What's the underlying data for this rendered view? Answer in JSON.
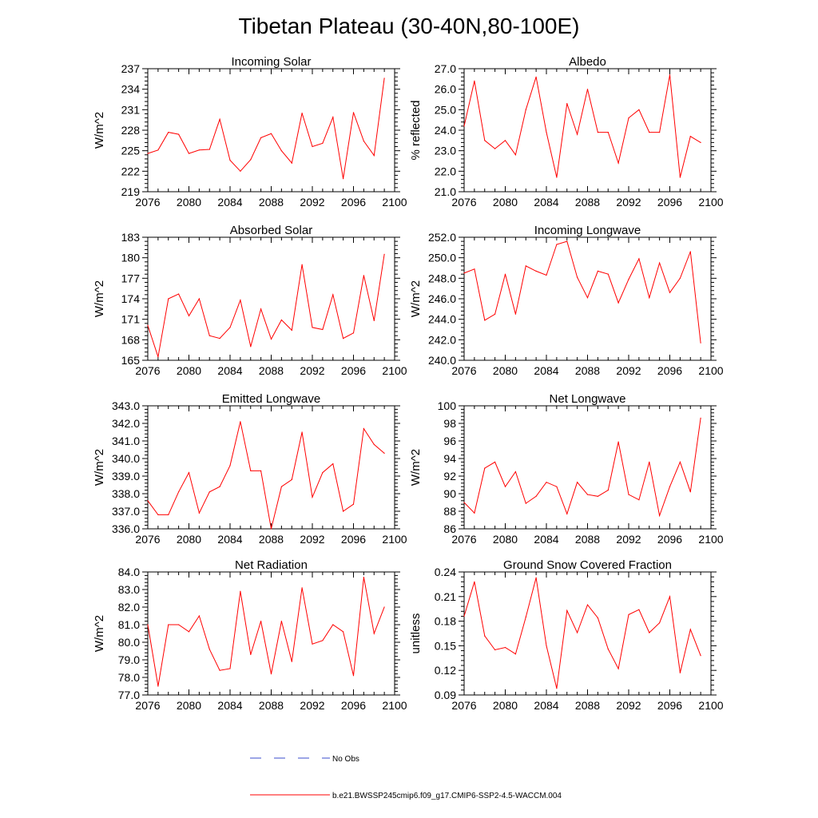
{
  "title": "Tibetan Plateau (30-40N,80-100E)",
  "legend": {
    "obs_label": "No Obs",
    "obs_color": "#3a4ccc",
    "model_label": "b.e21.BWSSP245cmip6.f09_g17.CMIP6-SSP2-4.5-WACCM.004",
    "model_color": "#ff0000"
  },
  "chart_data": [
    {
      "type": "line",
      "title": "Incoming Solar",
      "xlabel": "",
      "ylabel": "W/m^2",
      "xlim": [
        2076,
        2100
      ],
      "ylim": [
        219,
        237
      ],
      "xticks": [
        "2076",
        "2080",
        "2084",
        "2088",
        "2092",
        "2096",
        "2100"
      ],
      "yticks": [
        "219",
        "222",
        "225",
        "228",
        "231",
        "234",
        "237"
      ],
      "series": [
        {
          "name": "b.e21.BWSSP245cmip6.f09_g17.CMIP6-SSP2-4.5-WACCM.004",
          "x": [
            2076,
            2077,
            2078,
            2079,
            2080,
            2081,
            2082,
            2083,
            2084,
            2085,
            2086,
            2087,
            2088,
            2089,
            2090,
            2091,
            2092,
            2093,
            2094,
            2095,
            2096,
            2097,
            2098,
            2099
          ],
          "values": [
            224.6,
            225.1,
            227.7,
            227.4,
            224.6,
            225.1,
            225.2,
            229.6,
            223.6,
            222.0,
            223.7,
            226.9,
            227.5,
            225.0,
            223.2,
            230.5,
            225.6,
            226.1,
            229.9,
            220.9,
            230.6,
            226.4,
            224.3,
            235.6
          ]
        }
      ]
    },
    {
      "type": "line",
      "title": "Albedo",
      "xlabel": "",
      "ylabel": "% reflected",
      "xlim": [
        2076,
        2100
      ],
      "ylim": [
        21.0,
        27.0
      ],
      "xticks": [
        "2076",
        "2080",
        "2084",
        "2088",
        "2092",
        "2096",
        "2100"
      ],
      "yticks": [
        "21.0",
        "22.0",
        "23.0",
        "24.0",
        "25.0",
        "26.0",
        "27.0"
      ],
      "series": [
        {
          "name": "b.e21.BWSSP245cmip6.f09_g17.CMIP6-SSP2-4.5-WACCM.004",
          "x": [
            2076,
            2077,
            2078,
            2079,
            2080,
            2081,
            2082,
            2083,
            2084,
            2085,
            2086,
            2087,
            2088,
            2089,
            2090,
            2091,
            2092,
            2093,
            2094,
            2095,
            2096,
            2097,
            2098,
            2099
          ],
          "values": [
            24.2,
            26.4,
            23.5,
            23.1,
            23.5,
            22.8,
            25.0,
            26.6,
            23.9,
            21.7,
            25.3,
            23.8,
            26.0,
            23.9,
            23.9,
            22.4,
            24.6,
            25.0,
            23.9,
            23.9,
            26.7,
            21.7,
            23.7,
            23.4
          ]
        }
      ]
    },
    {
      "type": "line",
      "title": "Absorbed Solar",
      "xlabel": "",
      "ylabel": "W/m^2",
      "xlim": [
        2076,
        2100
      ],
      "ylim": [
        165,
        183
      ],
      "xticks": [
        "2076",
        "2080",
        "2084",
        "2088",
        "2092",
        "2096",
        "2100"
      ],
      "yticks": [
        "165",
        "168",
        "171",
        "174",
        "177",
        "180",
        "183"
      ],
      "series": [
        {
          "name": "b.e21.BWSSP245cmip6.f09_g17.CMIP6-SSP2-4.5-WACCM.004",
          "x": [
            2076,
            2077,
            2078,
            2079,
            2080,
            2081,
            2082,
            2083,
            2084,
            2085,
            2086,
            2087,
            2088,
            2089,
            2090,
            2091,
            2092,
            2093,
            2094,
            2095,
            2096,
            2097,
            2098,
            2099
          ],
          "values": [
            170.1,
            165.5,
            174.0,
            174.7,
            171.5,
            174.0,
            168.6,
            168.2,
            169.8,
            173.8,
            167.0,
            172.5,
            168.1,
            170.9,
            169.4,
            179.0,
            169.8,
            169.5,
            174.6,
            168.2,
            169.0,
            177.4,
            170.8,
            180.5
          ]
        }
      ]
    },
    {
      "type": "line",
      "title": "Incoming Longwave",
      "xlabel": "",
      "ylabel": "W/m^2",
      "xlim": [
        2076,
        2100
      ],
      "ylim": [
        240.0,
        252.0
      ],
      "xticks": [
        "2076",
        "2080",
        "2084",
        "2088",
        "2092",
        "2096",
        "2100"
      ],
      "yticks": [
        "240.0",
        "242.0",
        "244.0",
        "246.0",
        "248.0",
        "250.0",
        "252.0"
      ],
      "series": [
        {
          "name": "b.e21.BWSSP245cmip6.f09_g17.CMIP6-SSP2-4.5-WACCM.004",
          "x": [
            2076,
            2077,
            2078,
            2079,
            2080,
            2081,
            2082,
            2083,
            2084,
            2085,
            2086,
            2087,
            2088,
            2089,
            2090,
            2091,
            2092,
            2093,
            2094,
            2095,
            2096,
            2097,
            2098,
            2099
          ],
          "values": [
            248.5,
            248.9,
            243.9,
            244.5,
            248.4,
            244.5,
            249.2,
            248.7,
            248.3,
            251.3,
            251.6,
            248.1,
            246.1,
            248.7,
            248.4,
            245.6,
            247.9,
            249.9,
            246.1,
            249.5,
            246.6,
            248.0,
            250.6,
            241.7
          ]
        }
      ]
    },
    {
      "type": "line",
      "title": "Emitted Longwave",
      "xlabel": "",
      "ylabel": "W/m^2",
      "xlim": [
        2076,
        2100
      ],
      "ylim": [
        336.0,
        343.0
      ],
      "xticks": [
        "2076",
        "2080",
        "2084",
        "2088",
        "2092",
        "2096",
        "2100"
      ],
      "yticks": [
        "336.0",
        "337.0",
        "338.0",
        "339.0",
        "340.0",
        "341.0",
        "342.0",
        "343.0"
      ],
      "series": [
        {
          "name": "b.e21.BWSSP245cmip6.f09_g17.CMIP6-SSP2-4.5-WACCM.004",
          "x": [
            2076,
            2077,
            2078,
            2079,
            2080,
            2081,
            2082,
            2083,
            2084,
            2085,
            2086,
            2087,
            2088,
            2089,
            2090,
            2091,
            2092,
            2093,
            2094,
            2095,
            2096,
            2097,
            2098,
            2099
          ],
          "values": [
            337.6,
            336.8,
            336.8,
            338.1,
            339.2,
            336.9,
            338.1,
            338.4,
            339.6,
            342.1,
            339.3,
            339.3,
            336.0,
            338.4,
            338.8,
            341.5,
            337.8,
            339.2,
            339.7,
            337.0,
            337.4,
            341.7,
            340.8,
            340.3
          ]
        }
      ]
    },
    {
      "type": "line",
      "title": "Net Longwave",
      "xlabel": "",
      "ylabel": "W/m^2",
      "xlim": [
        2076,
        2100
      ],
      "ylim": [
        86,
        100
      ],
      "xticks": [
        "2076",
        "2080",
        "2084",
        "2088",
        "2092",
        "2096",
        "2100"
      ],
      "yticks": [
        "86",
        "88",
        "90",
        "92",
        "94",
        "96",
        "98",
        "100"
      ],
      "series": [
        {
          "name": "b.e21.BWSSP245cmip6.f09_g17.CMIP6-SSP2-4.5-WACCM.004",
          "x": [
            2076,
            2077,
            2078,
            2079,
            2080,
            2081,
            2082,
            2083,
            2084,
            2085,
            2086,
            2087,
            2088,
            2089,
            2090,
            2091,
            2092,
            2093,
            2094,
            2095,
            2096,
            2097,
            2098,
            2099
          ],
          "values": [
            89.0,
            87.8,
            92.9,
            93.6,
            90.8,
            92.5,
            88.9,
            89.7,
            91.3,
            90.8,
            87.7,
            91.3,
            89.9,
            89.7,
            90.4,
            95.9,
            89.9,
            89.3,
            93.6,
            87.5,
            90.8,
            93.6,
            90.2,
            98.6
          ]
        }
      ]
    },
    {
      "type": "line",
      "title": "Net Radiation",
      "xlabel": "",
      "ylabel": "W/m^2",
      "xlim": [
        2076,
        2100
      ],
      "ylim": [
        77.0,
        84.0
      ],
      "xticks": [
        "2076",
        "2080",
        "2084",
        "2088",
        "2092",
        "2096",
        "2100"
      ],
      "yticks": [
        "77.0",
        "78.0",
        "79.0",
        "80.0",
        "81.0",
        "82.0",
        "83.0",
        "84.0"
      ],
      "series": [
        {
          "name": "b.e21.BWSSP245cmip6.f09_g17.CMIP6-SSP2-4.5-WACCM.004",
          "x": [
            2076,
            2077,
            2078,
            2079,
            2080,
            2081,
            2082,
            2083,
            2084,
            2085,
            2086,
            2087,
            2088,
            2089,
            2090,
            2091,
            2092,
            2093,
            2094,
            2095,
            2096,
            2097,
            2098,
            2099
          ],
          "values": [
            81.0,
            77.5,
            81.0,
            81.0,
            80.6,
            81.5,
            79.6,
            78.4,
            78.5,
            82.9,
            79.3,
            81.2,
            78.2,
            81.2,
            78.9,
            83.1,
            79.9,
            80.1,
            81.0,
            80.6,
            78.1,
            83.7,
            80.5,
            82.0
          ]
        }
      ]
    },
    {
      "type": "line",
      "title": "Ground Snow Covered Fraction",
      "xlabel": "",
      "ylabel": "unitless",
      "xlim": [
        2076,
        2100
      ],
      "ylim": [
        0.09,
        0.24
      ],
      "xticks": [
        "2076",
        "2080",
        "2084",
        "2088",
        "2092",
        "2096",
        "2100"
      ],
      "yticks": [
        "0.09",
        "0.12",
        "0.15",
        "0.18",
        "0.21",
        "0.24"
      ],
      "series": [
        {
          "name": "b.e21.BWSSP245cmip6.f09_g17.CMIP6-SSP2-4.5-WACCM.004",
          "x": [
            2076,
            2077,
            2078,
            2079,
            2080,
            2081,
            2082,
            2083,
            2084,
            2085,
            2086,
            2087,
            2088,
            2089,
            2090,
            2091,
            2092,
            2093,
            2094,
            2095,
            2096,
            2097,
            2098,
            2099
          ],
          "values": [
            0.186,
            0.228,
            0.162,
            0.145,
            0.148,
            0.14,
            0.185,
            0.233,
            0.15,
            0.098,
            0.193,
            0.166,
            0.2,
            0.184,
            0.146,
            0.122,
            0.188,
            0.194,
            0.166,
            0.178,
            0.21,
            0.117,
            0.17,
            0.138
          ]
        }
      ]
    }
  ]
}
